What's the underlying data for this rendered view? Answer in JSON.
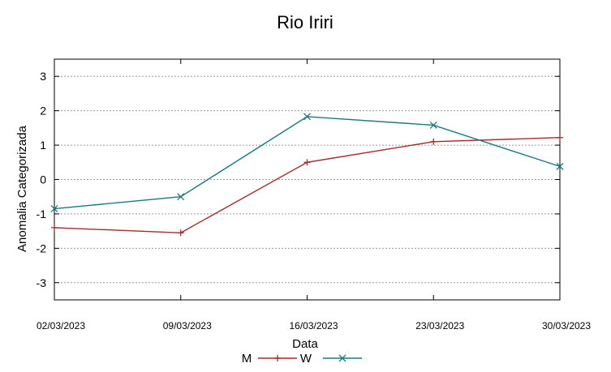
{
  "chart_data": {
    "type": "line",
    "title": "Rio Iriri",
    "xlabel": "Data",
    "ylabel": "Anomalia Categorizada",
    "categories": [
      "02/03/2023",
      "09/03/2023",
      "16/03/2023",
      "23/03/2023",
      "30/03/2023"
    ],
    "ylim": [
      -3.5,
      3.5
    ],
    "yticks": [
      -3,
      -2,
      -1,
      0,
      1,
      2,
      3
    ],
    "grid": true,
    "legend_position": "bottom",
    "series": [
      {
        "name": "M",
        "marker": "+",
        "color": "#a52a2a",
        "values": [
          -1.4,
          -1.55,
          0.5,
          1.1,
          1.22
        ]
      },
      {
        "name": "W",
        "marker": "x",
        "color": "#1b7a80",
        "values": [
          -0.85,
          -0.5,
          1.83,
          1.58,
          0.38
        ]
      }
    ]
  }
}
